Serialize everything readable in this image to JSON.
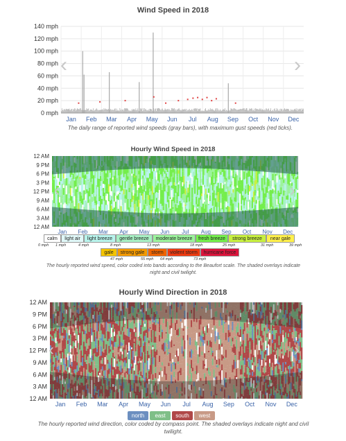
{
  "chart_data": [
    {
      "type": "bar",
      "title": "Wind Speed in 2018",
      "x_tick_labels": [
        "Jan",
        "Feb",
        "Mar",
        "Apr",
        "May",
        "Jun",
        "Jul",
        "Aug",
        "Sep",
        "Oct",
        "Nov",
        "Dec"
      ],
      "y_tick_labels": [
        "0 mph",
        "20 mph",
        "40 mph",
        "60 mph",
        "80 mph",
        "100 mph",
        "120 mph",
        "140 mph"
      ],
      "ylim": [
        0,
        140
      ],
      "grid": true,
      "caption": "The daily range of reported wind speeds (gray bars), with maximum gust speeds (red ticks).",
      "series_colors": {
        "range": "#b9b9b9",
        "gust": "#e04040"
      },
      "typical_daily_range": [
        0,
        8
      ],
      "spikes": [
        {
          "day": 32,
          "max": 100
        },
        {
          "day": 34,
          "max": 62
        },
        {
          "day": 72,
          "max": 66
        },
        {
          "day": 117,
          "max": 50
        },
        {
          "day": 138,
          "max": 130
        },
        {
          "day": 251,
          "max": 48
        }
      ],
      "gust_days": [
        {
          "day": 26,
          "max": 16
        },
        {
          "day": 58,
          "max": 18
        },
        {
          "day": 96,
          "max": 20
        },
        {
          "day": 139,
          "max": 26
        },
        {
          "day": 157,
          "max": 16
        },
        {
          "day": 176,
          "max": 20
        },
        {
          "day": 190,
          "max": 22
        },
        {
          "day": 198,
          "max": 24
        },
        {
          "day": 205,
          "max": 25
        },
        {
          "day": 212,
          "max": 22
        },
        {
          "day": 219,
          "max": 25
        },
        {
          "day": 226,
          "max": 20
        },
        {
          "day": 233,
          "max": 23
        },
        {
          "day": 262,
          "max": 16
        }
      ]
    },
    {
      "type": "heatmap",
      "title": "Hourly Wind Speed in 2018",
      "x_tick_labels": [
        "Jan",
        "Feb",
        "Mar",
        "Apr",
        "May",
        "Jun",
        "Jul",
        "Aug",
        "Sep",
        "Oct",
        "Nov",
        "Dec"
      ],
      "y_tick_labels": [
        "12 AM",
        "3 AM",
        "6 AM",
        "9 AM",
        "12 PM",
        "3 PM",
        "6 PM",
        "9 PM",
        "12 AM"
      ],
      "caption": "The hourly reported wind speed, color coded into bands according to the Beaufort scale. The shaded overlays indicate night and civil twilight.",
      "beaufort_bands": [
        {
          "label": "calm",
          "color": "#ffffff"
        },
        {
          "label": "light air",
          "color": "#e0f8f8"
        },
        {
          "label": "light breeze",
          "color": "#b8f4ec"
        },
        {
          "label": "gentle breeze",
          "color": "#a8f0c4"
        },
        {
          "label": "moderate breeze",
          "color": "#9cf39c"
        },
        {
          "label": "fresh breeze",
          "color": "#74ee4c"
        },
        {
          "label": "strong breeze",
          "color": "#c8f040"
        },
        {
          "label": "near gale",
          "color": "#fff04c"
        },
        {
          "label": "gale",
          "color": "#f4c400"
        },
        {
          "label": "strong gale",
          "color": "#f49a00"
        },
        {
          "label": "storm",
          "color": "#f06400"
        },
        {
          "label": "violent storm",
          "color": "#ee3a10"
        },
        {
          "label": "hurricane force",
          "color": "#dc143c"
        }
      ],
      "beaufort_thresholds": [
        "0 mph",
        "1 mph",
        "4 mph",
        "8 mph",
        "13 mph",
        "18 mph",
        "25 mph",
        "31 mph",
        "39 mph",
        "47 mph",
        "55 mph",
        "64 mph",
        "73 mph"
      ]
    },
    {
      "type": "heatmap",
      "title": "Hourly Wind Direction in 2018",
      "x_tick_labels": [
        "Jan",
        "Feb",
        "Mar",
        "Apr",
        "May",
        "Jun",
        "Jul",
        "Aug",
        "Sep",
        "Oct",
        "Nov",
        "Dec"
      ],
      "y_tick_labels": [
        "12 AM",
        "3 AM",
        "6 AM",
        "9 AM",
        "12 PM",
        "3 PM",
        "6 PM",
        "9 PM",
        "12 AM"
      ],
      "caption": "The hourly reported wind direction, color coded by compass point. The shaded overlays indicate night and civil twilight.",
      "direction_legend": [
        {
          "label": "north",
          "color": "#6c8fc0"
        },
        {
          "label": "east",
          "color": "#7fbf88"
        },
        {
          "label": "south",
          "color": "#b04848"
        },
        {
          "label": "west",
          "color": "#c89a86"
        }
      ]
    }
  ],
  "nav": {
    "prev_icon": "‹",
    "next_icon": "›"
  }
}
